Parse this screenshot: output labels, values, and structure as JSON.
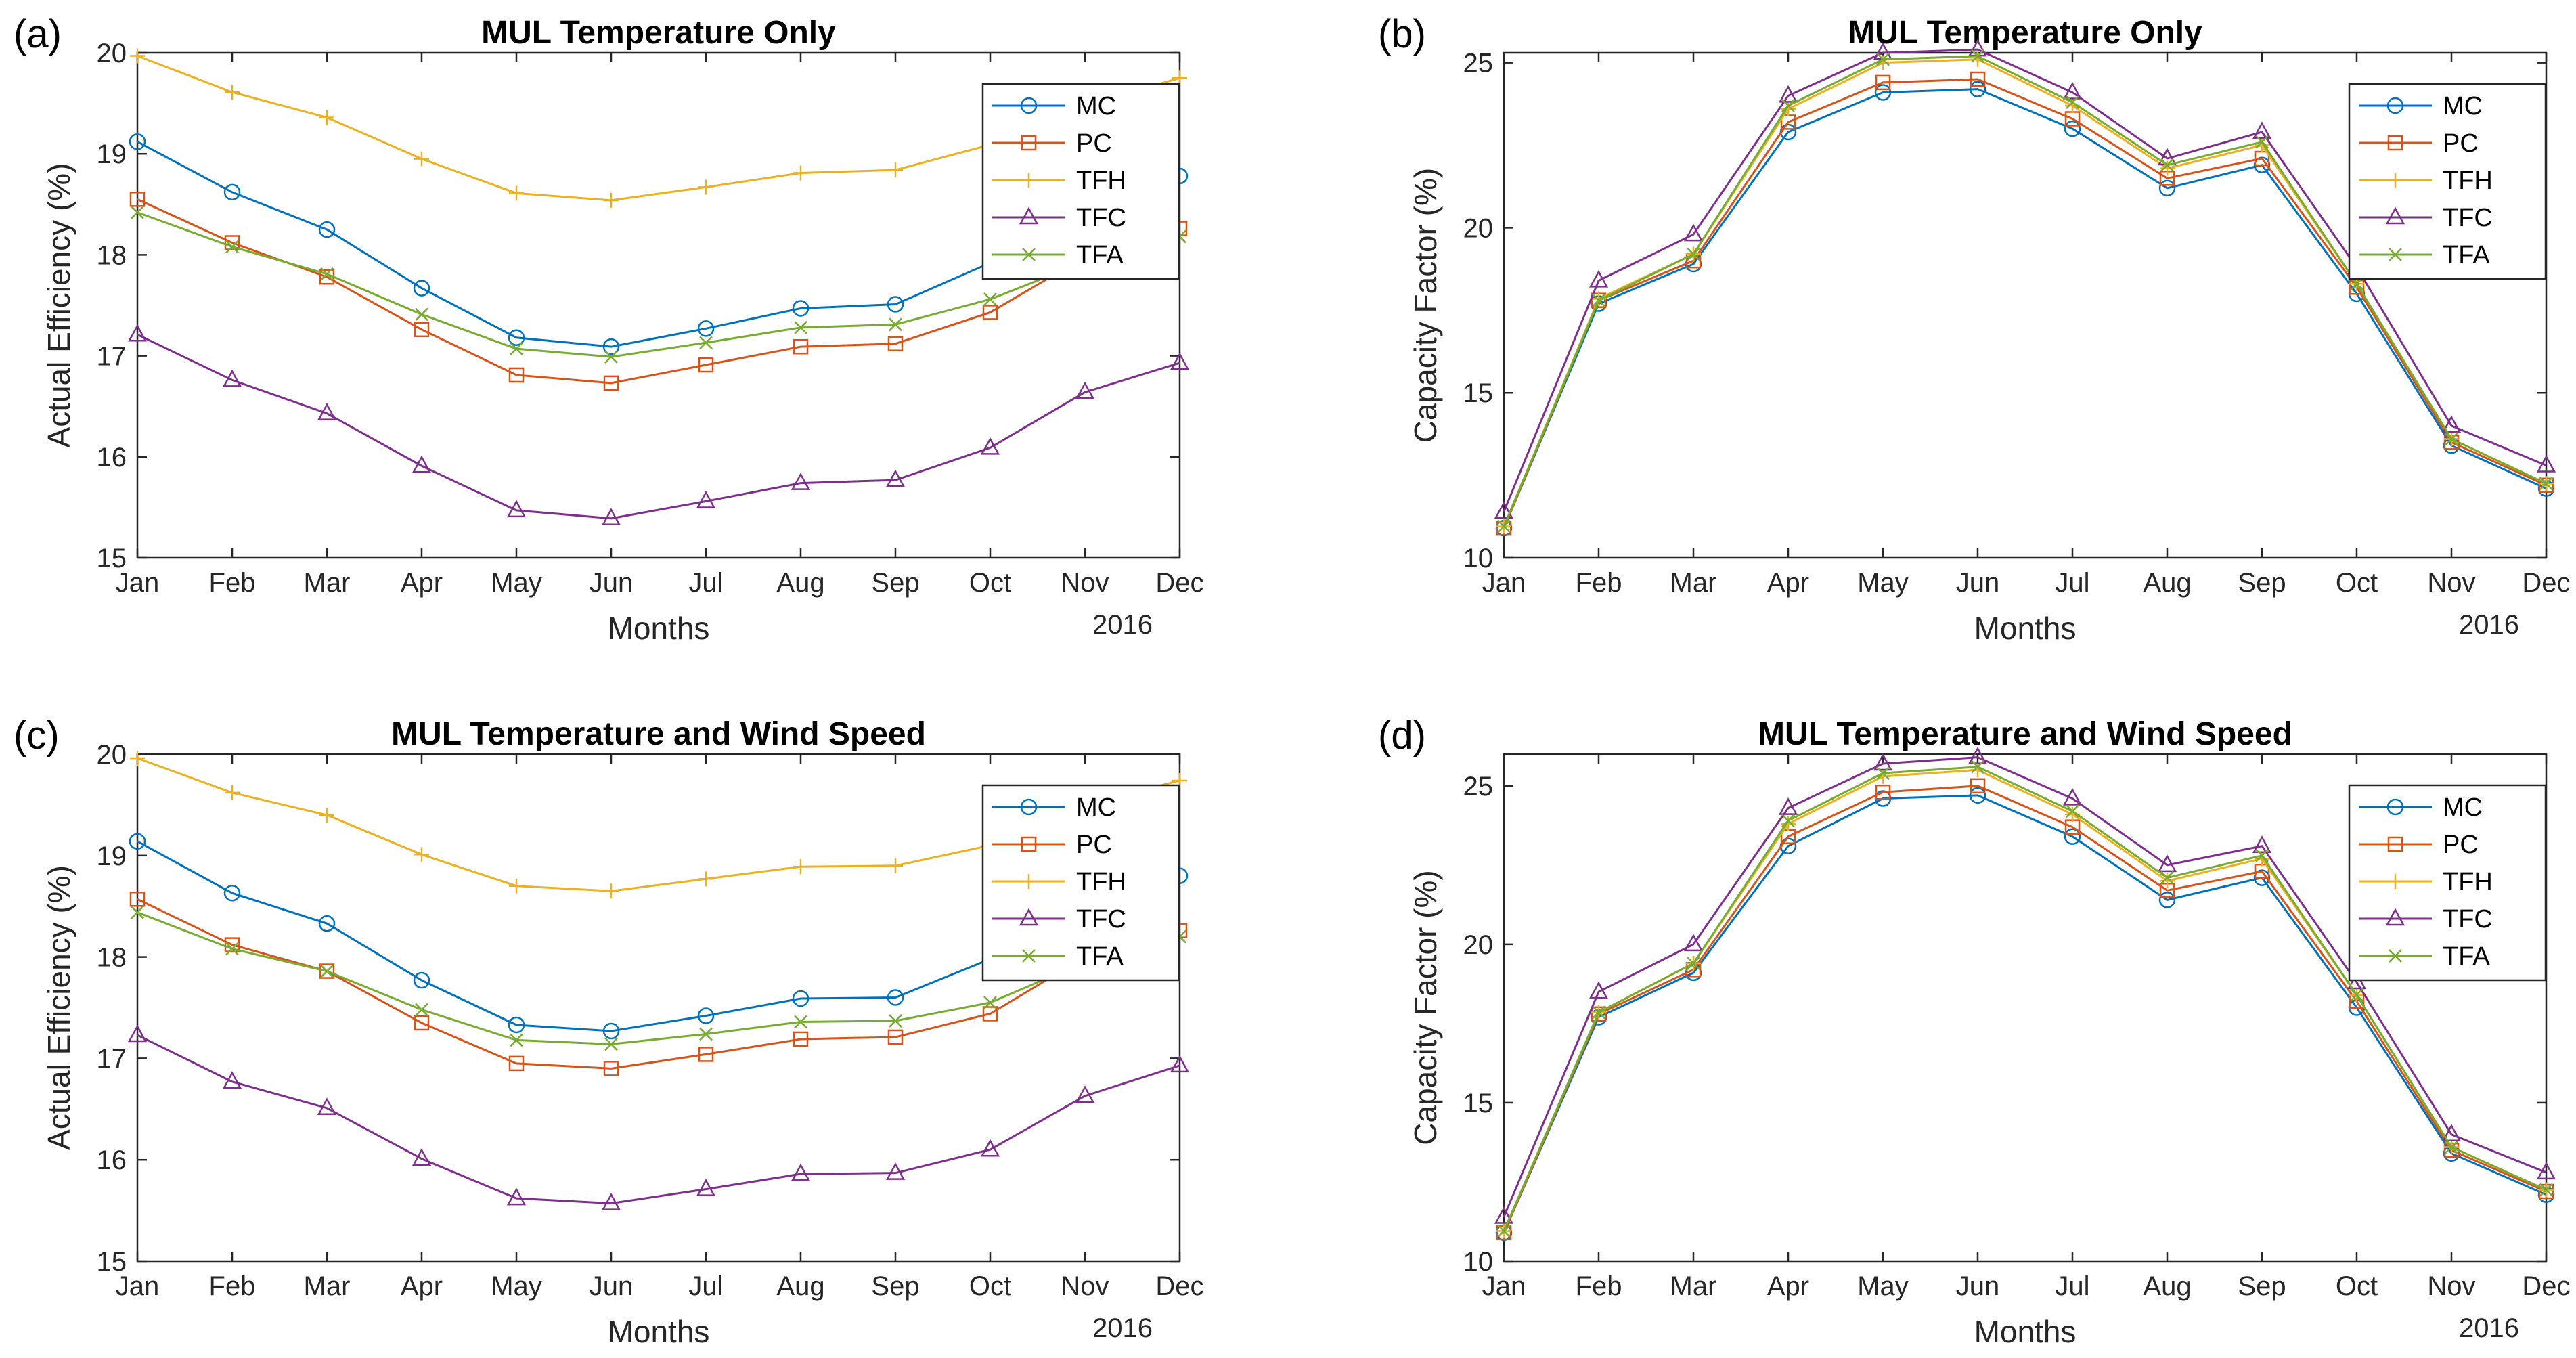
{
  "chart_data": [
    {
      "type": "line",
      "panel_label": "(a)",
      "title": "MUL Temperature Only",
      "xlabel": "Months",
      "ylabel": "Actual Efficiency (%)",
      "year_label": "2016",
      "categories": [
        "Jan",
        "Feb",
        "Mar",
        "Apr",
        "May",
        "Jun",
        "Jul",
        "Aug",
        "Sep",
        "Oct",
        "Nov",
        "Dec"
      ],
      "ylim": [
        15,
        20
      ],
      "yticks": [
        "15",
        "16",
        "17",
        "18",
        "19",
        "20"
      ],
      "legend_position": "top-right",
      "series": [
        {
          "name": "MC",
          "color": "#0072BD",
          "marker": "circle",
          "values": [
            19.12,
            18.62,
            18.25,
            17.67,
            17.18,
            17.09,
            17.27,
            17.47,
            17.51,
            17.92,
            18.42,
            18.78
          ]
        },
        {
          "name": "PC",
          "color": "#D95319",
          "marker": "square",
          "values": [
            18.55,
            18.12,
            17.78,
            17.26,
            16.81,
            16.73,
            16.91,
            17.09,
            17.12,
            17.43,
            17.98,
            18.26
          ]
        },
        {
          "name": "TFH",
          "color": "#EDB120",
          "marker": "plus",
          "values": [
            19.97,
            19.61,
            19.36,
            18.95,
            18.61,
            18.54,
            18.67,
            18.81,
            18.84,
            19.09,
            19.48,
            19.75
          ]
        },
        {
          "name": "TFC",
          "color": "#7E2F8E",
          "marker": "triangle",
          "values": [
            17.21,
            16.76,
            16.43,
            15.91,
            15.47,
            15.39,
            15.56,
            15.74,
            15.77,
            16.09,
            16.64,
            16.93
          ]
        },
        {
          "name": "TFA",
          "color": "#77AC30",
          "marker": "x",
          "values": [
            18.42,
            18.08,
            17.81,
            17.41,
            17.07,
            16.99,
            17.13,
            17.28,
            17.31,
            17.56,
            17.93,
            18.18
          ]
        }
      ]
    },
    {
      "type": "line",
      "panel_label": "(b)",
      "title": "MUL Temperature Only",
      "xlabel": "Months",
      "ylabel": "Capacity Factor (%)",
      "year_label": "2016",
      "categories": [
        "Jan",
        "Feb",
        "Mar",
        "Apr",
        "May",
        "Jun",
        "Jul",
        "Aug",
        "Sep",
        "Oct",
        "Nov",
        "Dec"
      ],
      "ylim": [
        10,
        25.3
      ],
      "yticks": [
        "10",
        "15",
        "20",
        "25"
      ],
      "legend_position": "top-right",
      "series": [
        {
          "name": "MC",
          "color": "#0072BD",
          "marker": "circle",
          "values": [
            10.9,
            17.7,
            18.9,
            22.9,
            24.1,
            24.2,
            23.0,
            21.2,
            21.9,
            18.0,
            13.4,
            12.1
          ]
        },
        {
          "name": "PC",
          "color": "#D95319",
          "marker": "square",
          "values": [
            10.9,
            17.8,
            19.0,
            23.2,
            24.4,
            24.5,
            23.3,
            21.5,
            22.1,
            18.2,
            13.5,
            12.2
          ]
        },
        {
          "name": "TFH",
          "color": "#EDB120",
          "marker": "plus",
          "values": [
            10.95,
            17.85,
            19.2,
            23.6,
            25.0,
            25.1,
            23.7,
            21.8,
            22.5,
            18.3,
            13.6,
            12.25
          ]
        },
        {
          "name": "TFC",
          "color": "#7E2F8E",
          "marker": "triangle",
          "values": [
            11.4,
            18.4,
            19.8,
            24.0,
            25.3,
            25.4,
            24.1,
            22.1,
            22.9,
            18.8,
            14.0,
            12.8
          ]
        },
        {
          "name": "TFA",
          "color": "#77AC30",
          "marker": "x",
          "values": [
            10.95,
            17.8,
            19.2,
            23.7,
            25.1,
            25.2,
            23.8,
            21.9,
            22.6,
            18.3,
            13.6,
            12.25
          ]
        }
      ]
    },
    {
      "type": "line",
      "panel_label": "(c)",
      "title": "MUL Temperature and Wind Speed",
      "xlabel": "Months",
      "ylabel": "Actual Efficiency (%)",
      "year_label": "2016",
      "categories": [
        "Jan",
        "Feb",
        "Mar",
        "Apr",
        "May",
        "Jun",
        "Jul",
        "Aug",
        "Sep",
        "Oct",
        "Nov",
        "Dec"
      ],
      "ylim": [
        15,
        20
      ],
      "yticks": [
        "15",
        "16",
        "17",
        "18",
        "19",
        "20"
      ],
      "legend_position": "top-right",
      "series": [
        {
          "name": "MC",
          "color": "#0072BD",
          "marker": "circle",
          "values": [
            19.14,
            18.63,
            18.33,
            17.77,
            17.33,
            17.27,
            17.42,
            17.59,
            17.6,
            17.98,
            18.45,
            18.8
          ]
        },
        {
          "name": "PC",
          "color": "#D95319",
          "marker": "square",
          "values": [
            18.57,
            18.12,
            17.86,
            17.35,
            16.95,
            16.9,
            17.04,
            17.19,
            17.21,
            17.44,
            18.0,
            18.26
          ]
        },
        {
          "name": "TFH",
          "color": "#EDB120",
          "marker": "plus",
          "values": [
            19.96,
            19.62,
            19.4,
            19.01,
            18.7,
            18.65,
            18.77,
            18.89,
            18.9,
            19.1,
            19.5,
            19.74
          ]
        },
        {
          "name": "TFC",
          "color": "#7E2F8E",
          "marker": "triangle",
          "values": [
            17.23,
            16.77,
            16.51,
            16.01,
            15.62,
            15.57,
            15.71,
            15.86,
            15.87,
            16.1,
            16.63,
            16.93
          ]
        },
        {
          "name": "TFA",
          "color": "#77AC30",
          "marker": "x",
          "values": [
            18.44,
            18.08,
            17.86,
            17.48,
            17.18,
            17.14,
            17.24,
            17.36,
            17.37,
            17.55,
            17.95,
            18.2
          ]
        }
      ]
    },
    {
      "type": "line",
      "panel_label": "(d)",
      "title": "MUL Temperature and Wind Speed",
      "xlabel": "Months",
      "ylabel": "Capacity Factor (%)",
      "year_label": "2016",
      "categories": [
        "Jan",
        "Feb",
        "Mar",
        "Apr",
        "May",
        "Jun",
        "Jul",
        "Aug",
        "Sep",
        "Oct",
        "Nov",
        "Dec"
      ],
      "ylim": [
        10,
        26
      ],
      "yticks": [
        "10",
        "15",
        "20",
        "25"
      ],
      "legend_position": "top-right",
      "series": [
        {
          "name": "MC",
          "color": "#0072BD",
          "marker": "circle",
          "values": [
            10.9,
            17.7,
            19.1,
            23.1,
            24.6,
            24.7,
            23.4,
            21.4,
            22.1,
            18.0,
            13.4,
            12.1
          ]
        },
        {
          "name": "PC",
          "color": "#D95319",
          "marker": "square",
          "values": [
            10.9,
            17.8,
            19.2,
            23.4,
            24.8,
            25.0,
            23.7,
            21.7,
            22.3,
            18.2,
            13.5,
            12.2
          ]
        },
        {
          "name": "TFH",
          "color": "#EDB120",
          "marker": "plus",
          "values": [
            10.95,
            17.85,
            19.4,
            23.8,
            25.3,
            25.5,
            24.1,
            22.0,
            22.7,
            18.4,
            13.6,
            12.25
          ]
        },
        {
          "name": "TFC",
          "color": "#7E2F8E",
          "marker": "triangle",
          "values": [
            11.4,
            18.5,
            20.0,
            24.3,
            25.7,
            25.9,
            24.6,
            22.5,
            23.1,
            18.8,
            14.0,
            12.8
          ]
        },
        {
          "name": "TFA",
          "color": "#77AC30",
          "marker": "x",
          "values": [
            10.95,
            17.85,
            19.4,
            23.9,
            25.4,
            25.6,
            24.2,
            22.1,
            22.8,
            18.4,
            13.6,
            12.25
          ]
        }
      ]
    }
  ]
}
